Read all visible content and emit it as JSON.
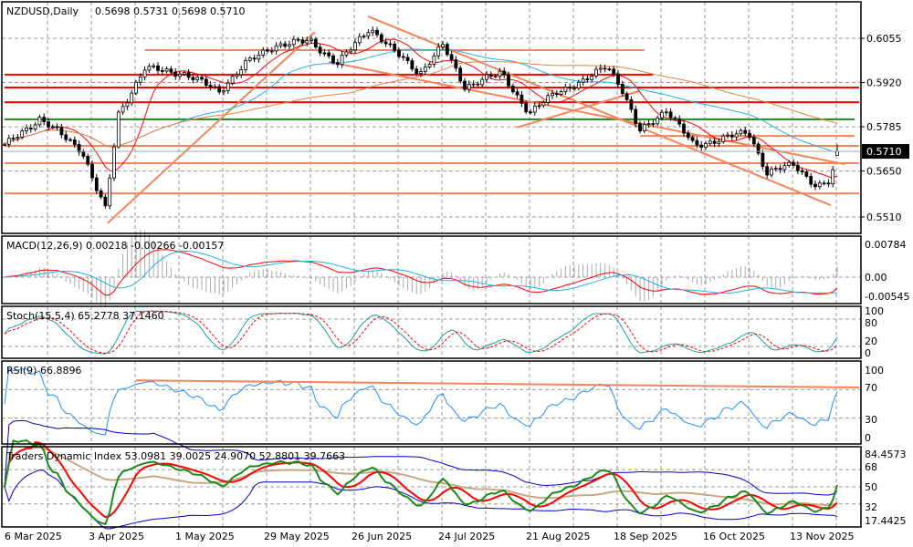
{
  "header": {
    "symbol": "NZDUSD,Daily",
    "ohlc": "0.5698 0.5731 0.5698 0.5710"
  },
  "colors": {
    "bull": "#ffffff",
    "bear": "#000000",
    "level_orange": "#f5845a",
    "level_red": "#ff0000",
    "level_green": "#1a8a1a",
    "ma_red": "#ff0000",
    "ma_cyan": "#1fb4e6",
    "ma_orange": "#f08040",
    "macd_red": "#ff0000",
    "macd_blue": "#1fb4e6",
    "stoch_main": "#20a0a0",
    "stoch_signal": "#ff0000",
    "rsi": "#1e90ff",
    "tdi_green": "#1a8a1a",
    "tdi_red": "#ff0000",
    "tdi_blue": "#0000cc",
    "tdi_base": "#c8a882"
  },
  "chart_data": {
    "type": "candlestick",
    "title": "NZDUSD,Daily",
    "current_price": "0.5710",
    "price_ticks": [
      "0.6055",
      "0.5920",
      "0.5785",
      "0.5650",
      "0.5510"
    ],
    "ylim": [
      0.551,
      0.6055
    ],
    "x_ticks": [
      "6 Mar 2025",
      "3 Apr 2025",
      "1 May 2025",
      "29 May 2025",
      "26 Jun 2025",
      "24 Jul 2025",
      "21 Aug 2025",
      "18 Sep 2025",
      "16 Oct 2025",
      "13 Nov 2025"
    ],
    "bars": 191,
    "close_anchors": [
      [
        0,
        0.5727
      ],
      [
        8,
        0.581
      ],
      [
        17.7,
        0.5713
      ],
      [
        20.8,
        0.5602
      ],
      [
        23,
        0.5532
      ],
      [
        26,
        0.5824
      ],
      [
        32,
        0.5963
      ],
      [
        40.6,
        0.5949
      ],
      [
        49,
        0.5894
      ],
      [
        55,
        0.5977
      ],
      [
        61.5,
        0.6033
      ],
      [
        69.8,
        0.6047
      ],
      [
        76,
        0.5977
      ],
      [
        83.3,
        0.6088
      ],
      [
        88.5,
        0.6019
      ],
      [
        94.8,
        0.5949
      ],
      [
        100,
        0.6033
      ],
      [
        105,
        0.5908
      ],
      [
        113.5,
        0.5949
      ],
      [
        119.8,
        0.5824
      ],
      [
        126,
        0.5894
      ],
      [
        132.3,
        0.5922
      ],
      [
        137.5,
        0.5977
      ],
      [
        140.6,
        0.5908
      ],
      [
        144.8,
        0.5769
      ],
      [
        151,
        0.5838
      ],
      [
        157.3,
        0.5727
      ],
      [
        165.6,
        0.5755
      ],
      [
        169.8,
        0.5769
      ],
      [
        174,
        0.5644
      ],
      [
        180.2,
        0.5671
      ],
      [
        185.4,
        0.5602
      ],
      [
        188.5,
        0.5616
      ],
      [
        190,
        0.571
      ]
    ],
    "levels": [
      {
        "price": 0.6019,
        "from": 32,
        "to": 146,
        "color": "orange"
      },
      {
        "price": 0.5944,
        "from": 0,
        "to": 148,
        "color": "red"
      },
      {
        "price": 0.5905,
        "from": 0,
        "to": 195,
        "color": "red"
      },
      {
        "price": 0.586,
        "from": 0,
        "to": 195,
        "color": "red"
      },
      {
        "price": 0.5808,
        "from": 0,
        "to": 194,
        "color": "green"
      },
      {
        "price": 0.5757,
        "from": 145,
        "to": 194,
        "color": "orange"
      },
      {
        "price": 0.5727,
        "from": 0,
        "to": 195,
        "color": "orange"
      },
      {
        "price": 0.5674,
        "from": 0,
        "to": 195,
        "color": "orange"
      },
      {
        "price": 0.5582,
        "from": 0,
        "to": 195,
        "color": "orange"
      }
    ],
    "trendlines": [
      {
        "a": [
          23.5,
          0.5491
        ],
        "b": [
          70.8,
          0.6074
        ]
      },
      {
        "a": [
          82.9,
          0.6122
        ],
        "b": [
          188.5,
          0.5546
        ]
      },
      {
        "a": [
          74,
          0.5983
        ],
        "b": [
          191.7,
          0.5671
        ]
      },
      {
        "a": [
          116.9,
          0.5783
        ],
        "b": [
          144.8,
          0.5894
        ]
      }
    ],
    "moving_averages": [
      {
        "period": 10,
        "color": "ma_red"
      },
      {
        "period": 40,
        "color": "ma_cyan"
      },
      {
        "period": 80,
        "color": "ma_orange"
      }
    ],
    "indicators": {
      "macd": {
        "label": "MACD(12,26,9) 0.00218 -0.00266 -0.00157",
        "ticks": [
          "0.00784",
          "0.00",
          "-0.00545"
        ],
        "ylim": [
          -0.00545,
          0.00784
        ]
      },
      "stoch": {
        "label": "Stoch(15,5,4) 65.2778 37.1460",
        "ticks": [
          "100",
          "80",
          "20",
          "0"
        ],
        "levels": [
          20,
          80
        ]
      },
      "rsi": {
        "label": "RSI(9) 66.8896",
        "ticks": [
          "100",
          "70",
          "30",
          "0"
        ],
        "levels": [
          70,
          30
        ],
        "trendline": {
          "a": [
            30,
            83
          ],
          "b": [
            195,
            73
          ]
        }
      },
      "tdi": {
        "label": "Traders Dynamic Index 53.0981 39.0025 24.9070 52.8801 39.7663",
        "ticks": [
          "84.4573",
          "68",
          "50",
          "32",
          "17.4425"
        ],
        "levels": [
          68,
          50,
          32
        ]
      }
    }
  }
}
